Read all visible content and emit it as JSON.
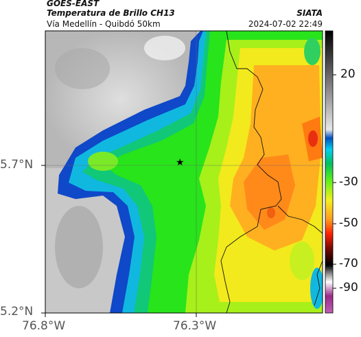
{
  "header": {
    "satellite": "GOES-EAST",
    "product": "Temperatura de Brillo CH13",
    "region": "Vía Medellín - Quibdó 50km",
    "org": "SIATA",
    "datetime": "2024-07-02 22:49"
  },
  "axes": {
    "lat_ticks": [
      "5.7°N",
      "5.2°N"
    ],
    "lon_ticks": [
      "76.8°W",
      "76.3°W"
    ]
  },
  "colorbar": {
    "ticks": [
      "20",
      "-30",
      "-50",
      "-70",
      "-90"
    ],
    "range": [
      -95,
      35
    ]
  },
  "marker": {
    "symbol": "★"
  },
  "colors": {
    "cold_magenta": "#b040a0",
    "cold_red": "#c81800",
    "orange": "#ff9a1e",
    "yellow": "#f5ef1e",
    "green": "#22e61a",
    "cyan": "#00c8e6",
    "blue": "#0040d0",
    "warm_gray": "#d4d4d4"
  }
}
